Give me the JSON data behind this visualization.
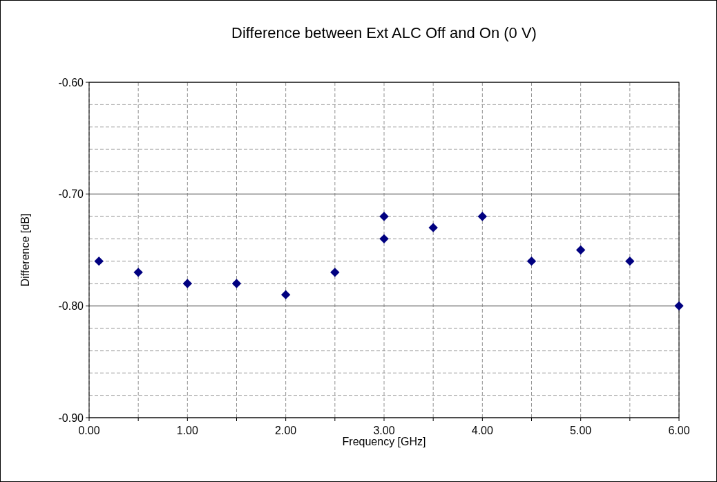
{
  "chart_data": {
    "type": "scatter",
    "title": "Difference between Ext ALC Off and On (0 V)",
    "xlabel": "Frequency [GHz]",
    "ylabel": "Difference [dB]",
    "x": [
      0.1,
      0.5,
      1,
      1.5,
      2,
      2.5,
      3,
      3,
      3.5,
      4,
      4.5,
      5,
      5.5,
      6
    ],
    "series": [
      {
        "color": "#000080",
        "values": [
          -0.76,
          -0.77,
          -0.78,
          -0.78,
          -0.79,
          -0.77,
          -0.72,
          -0.74,
          -0.73,
          -0.72,
          -0.76,
          -0.75,
          -0.76,
          -0.8
        ]
      }
    ],
    "marker": "diamond",
    "grid": true,
    "xlim": [
      0,
      6
    ],
    "xticks": [
      {
        "value": 0,
        "label": "0.00"
      },
      {
        "value": 0.5,
        "label": null
      },
      {
        "value": 1,
        "label": "1.00"
      },
      {
        "value": 1.5,
        "label": null
      },
      {
        "value": 2,
        "label": "2.00"
      },
      {
        "value": 2.5,
        "label": null
      },
      {
        "value": 3,
        "label": "3.00"
      },
      {
        "value": 3.5,
        "label": null
      },
      {
        "value": 4,
        "label": "4.00"
      },
      {
        "value": 4.5,
        "label": null
      },
      {
        "value": 5,
        "label": "5.00"
      },
      {
        "value": 5.5,
        "label": null
      },
      {
        "value": 6,
        "label": "6.00"
      }
    ],
    "ylim": [
      -0.9,
      -0.6
    ],
    "yticks": [
      {
        "value": -0.9,
        "label": "-0.90"
      },
      {
        "value": -0.88,
        "label": null
      },
      {
        "value": -0.86,
        "label": null
      },
      {
        "value": -0.84,
        "label": null
      },
      {
        "value": -0.82,
        "label": null
      },
      {
        "value": -0.8,
        "label": "-0.80"
      },
      {
        "value": -0.78,
        "label": null
      },
      {
        "value": -0.76,
        "label": null
      },
      {
        "value": -0.74,
        "label": null
      },
      {
        "value": -0.72,
        "label": null
      },
      {
        "value": -0.7,
        "label": "-0.70"
      },
      {
        "value": -0.68,
        "label": null
      },
      {
        "value": -0.66,
        "label": null
      },
      {
        "value": -0.64,
        "label": null
      },
      {
        "value": -0.62,
        "label": null
      },
      {
        "value": -0.6,
        "label": "-0.60"
      }
    ]
  }
}
